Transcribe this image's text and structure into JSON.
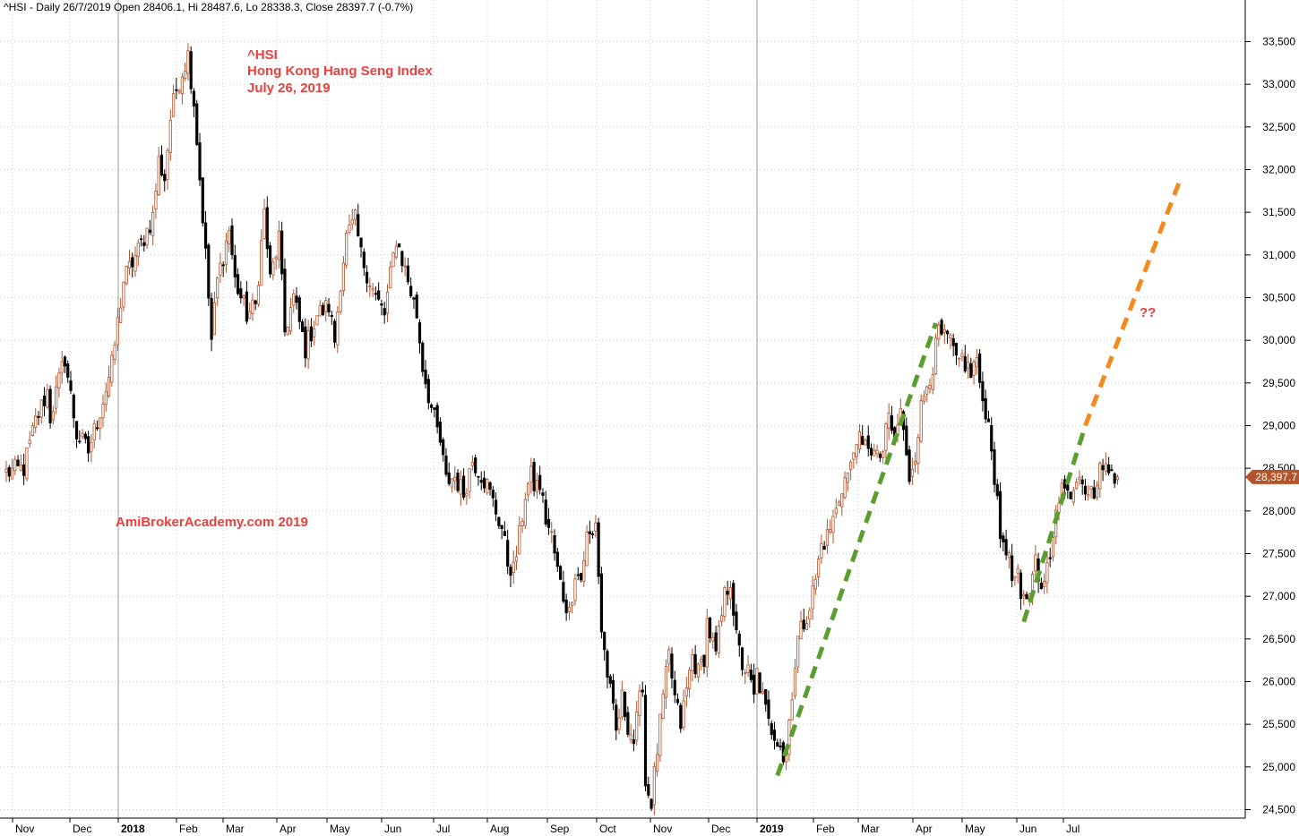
{
  "header": "^HSI - Daily 26/7/2019 Open 28406.1, Hi 28487.6, Lo 28338.3, Close 28397.7 (-0.7%)",
  "annotations": {
    "line1": "^HSI",
    "line2": "Hong Kong Hang Seng Index",
    "line3": "July 26, 2019",
    "watermark": "AmiBrokerAcademy.com   2019",
    "question": "??"
  },
  "price_label": "28,397.7",
  "colors": {
    "up": "#b5532a",
    "down": "#000000",
    "annotation": "#e8403c",
    "trend_green": "#5a9e2f",
    "trend_orange": "#f28a1e",
    "price_tag": "#b5532a"
  },
  "chart_data": {
    "type": "candlestick",
    "title": "^HSI Hong Kong Hang Seng Index",
    "y_axis": {
      "ticks": [
        24500,
        25000,
        25500,
        26000,
        26500,
        27000,
        27500,
        28000,
        28500,
        29000,
        29500,
        30000,
        30500,
        31000,
        31500,
        32000,
        32500,
        33000,
        33500
      ],
      "tick_labels": [
        "24,500",
        "25,000",
        "25,500",
        "26,000",
        "26,500",
        "27,000",
        "27,500",
        "28,000",
        "28,500",
        "29,000",
        "29,500",
        "30,000",
        "30,500",
        "31,000",
        "31,500",
        "32,000",
        "32,500",
        "33,000",
        "33,500"
      ],
      "range": [
        24300,
        33700
      ],
      "side": "right"
    },
    "x_axis": {
      "labels": [
        "Nov",
        "Dec",
        "2018",
        "Feb",
        "Mar",
        "Apr",
        "May",
        "Jun",
        "Jul",
        "Aug",
        "Sep",
        "Oct",
        "Nov",
        "Dec",
        "2019",
        "Feb",
        "Mar",
        "Apr",
        "May",
        "Jun",
        "Jul"
      ],
      "bold": [
        false,
        false,
        true,
        false,
        false,
        false,
        false,
        false,
        false,
        false,
        false,
        false,
        false,
        false,
        true,
        false,
        false,
        false,
        false,
        false,
        false
      ]
    },
    "grid": true,
    "path_points": [
      [
        0,
        28450
      ],
      [
        6,
        28500
      ],
      [
        10,
        29050
      ],
      [
        14,
        29400
      ],
      [
        15,
        29100
      ],
      [
        20,
        29800
      ],
      [
        24,
        28900
      ],
      [
        28,
        28700
      ],
      [
        33,
        29300
      ],
      [
        36,
        29700
      ],
      [
        40,
        30700
      ],
      [
        45,
        31050
      ],
      [
        50,
        31450
      ],
      [
        52,
        32100
      ],
      [
        54,
        31900
      ],
      [
        56,
        32600
      ],
      [
        58,
        32950
      ],
      [
        62,
        33350
      ],
      [
        64,
        32800
      ],
      [
        66,
        31900
      ],
      [
        68,
        31000
      ],
      [
        70,
        30000
      ],
      [
        72,
        30700
      ],
      [
        74,
        31000
      ],
      [
        76,
        31300
      ],
      [
        78,
        30700
      ],
      [
        82,
        30300
      ],
      [
        85,
        30400
      ],
      [
        88,
        31500
      ],
      [
        90,
        30700
      ],
      [
        93,
        31200
      ],
      [
        95,
        30100
      ],
      [
        98,
        30500
      ],
      [
        100,
        30200
      ],
      [
        102,
        29900
      ],
      [
        106,
        30300
      ],
      [
        110,
        30400
      ],
      [
        112,
        30000
      ],
      [
        114,
        30700
      ],
      [
        116,
        31200
      ],
      [
        119,
        31400
      ],
      [
        121,
        31000
      ],
      [
        124,
        30700
      ],
      [
        126,
        30500
      ],
      [
        129,
        30300
      ],
      [
        133,
        31200
      ],
      [
        137,
        30700
      ],
      [
        140,
        30300
      ],
      [
        142,
        29700
      ],
      [
        145,
        29200
      ],
      [
        148,
        28800
      ],
      [
        150,
        28350
      ],
      [
        153,
        28400
      ],
      [
        156,
        28200
      ],
      [
        159,
        28600
      ],
      [
        161,
        28500
      ],
      [
        164,
        28300
      ],
      [
        167,
        28000
      ],
      [
        169,
        27800
      ],
      [
        171,
        27400
      ],
      [
        173,
        27300
      ],
      [
        175,
        27700
      ],
      [
        177,
        28200
      ],
      [
        179,
        28400
      ],
      [
        180,
        28300
      ],
      [
        182,
        28300
      ],
      [
        184,
        27900
      ],
      [
        186,
        27700
      ],
      [
        188,
        27300
      ],
      [
        190,
        27000
      ],
      [
        192,
        26800
      ],
      [
        194,
        27300
      ],
      [
        196,
        27200
      ],
      [
        198,
        27700
      ],
      [
        200,
        27700
      ],
      [
        201,
        27900
      ],
      [
        203,
        26600
      ],
      [
        205,
        26100
      ],
      [
        208,
        25400
      ],
      [
        210,
        25800
      ],
      [
        212,
        25500
      ],
      [
        214,
        25300
      ],
      [
        217,
        26000
      ],
      [
        218,
        24800
      ],
      [
        220,
        24600
      ],
      [
        222,
        25200
      ],
      [
        224,
        25800
      ],
      [
        226,
        26300
      ],
      [
        228,
        25800
      ],
      [
        230,
        25500
      ],
      [
        232,
        25900
      ],
      [
        234,
        26300
      ],
      [
        236,
        26100
      ],
      [
        238,
        26300
      ],
      [
        239,
        26700
      ],
      [
        242,
        26300
      ],
      [
        245,
        27000
      ],
      [
        247,
        27200
      ],
      [
        249,
        26500
      ],
      [
        251,
        26200
      ],
      [
        253,
        26100
      ],
      [
        255,
        25800
      ],
      [
        256,
        26100
      ],
      [
        258,
        25800
      ],
      [
        260,
        25500
      ],
      [
        262,
        25400
      ],
      [
        264,
        25300
      ],
      [
        265,
        25100
      ],
      [
        266,
        25200
      ],
      [
        268,
        25900
      ],
      [
        270,
        26500
      ],
      [
        272,
        26700
      ],
      [
        274,
        26900
      ],
      [
        276,
        27200
      ],
      [
        278,
        27600
      ],
      [
        280,
        27700
      ],
      [
        283,
        28000
      ],
      [
        285,
        28300
      ],
      [
        288,
        28500
      ],
      [
        290,
        28900
      ],
      [
        292,
        28700
      ],
      [
        294,
        28800
      ],
      [
        297,
        28600
      ],
      [
        299,
        28700
      ],
      [
        301,
        29100
      ],
      [
        303,
        28800
      ],
      [
        305,
        29200
      ],
      [
        307,
        28600
      ],
      [
        308,
        28400
      ],
      [
        310,
        28700
      ],
      [
        312,
        29200
      ],
      [
        314,
        29500
      ],
      [
        316,
        29700
      ],
      [
        318,
        30100
      ],
      [
        320,
        30000
      ],
      [
        322,
        30000
      ],
      [
        324,
        29700
      ],
      [
        326,
        29800
      ],
      [
        329,
        29600
      ],
      [
        331,
        29800
      ],
      [
        332,
        29400
      ],
      [
        334,
        29200
      ],
      [
        336,
        28800
      ],
      [
        337,
        28400
      ],
      [
        339,
        27700
      ],
      [
        341,
        27600
      ],
      [
        343,
        27200
      ],
      [
        345,
        27200
      ],
      [
        346,
        26900
      ],
      [
        348,
        27000
      ],
      [
        350,
        27200
      ],
      [
        351,
        27600
      ],
      [
        353,
        27000
      ],
      [
        354,
        27200
      ],
      [
        356,
        27400
      ],
      [
        358,
        28100
      ],
      [
        360,
        28300
      ],
      [
        362,
        28200
      ],
      [
        364,
        28300
      ],
      [
        366,
        28500
      ],
      [
        368,
        28300
      ],
      [
        370,
        28200
      ],
      [
        372,
        28300
      ],
      [
        374,
        28600
      ],
      [
        376,
        28400
      ],
      [
        377,
        28500
      ],
      [
        379,
        28400
      ]
    ],
    "last_close": 28397.7,
    "trend_lines": [
      {
        "color": "green",
        "from": {
          "bar": 263,
          "price": 24900
        },
        "to": {
          "bar": 317,
          "price": 30200
        }
      },
      {
        "color": "green",
        "from": {
          "bar": 347,
          "price": 26700
        },
        "to": {
          "bar": 368,
          "price": 29000
        }
      },
      {
        "color": "orange",
        "from": {
          "bar": 368,
          "price": 29000
        },
        "to": {
          "bar": 400,
          "price": 31850
        }
      }
    ]
  }
}
